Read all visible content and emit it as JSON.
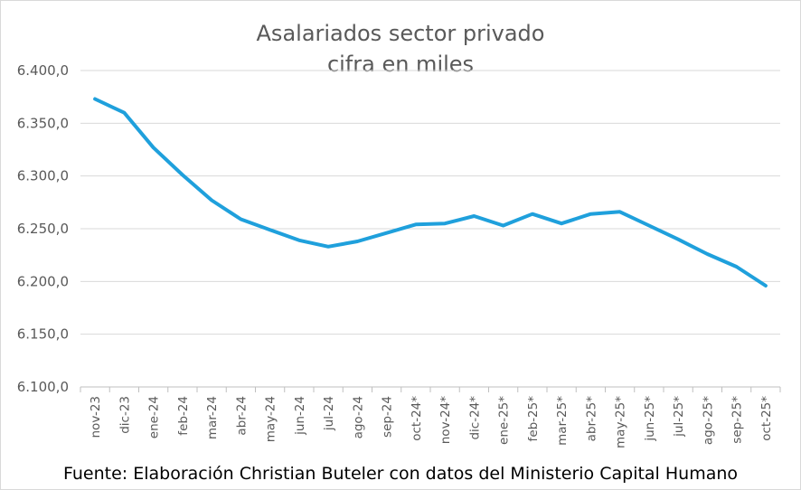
{
  "chart_data": {
    "type": "line",
    "title": "Asalariados sector privado",
    "subtitle": "cifra en miles",
    "footnote": "Fuente: Elaboración Christian Buteler con datos del Ministerio Capital Humano",
    "xlabel": "",
    "ylabel": "",
    "ylim": [
      6100,
      6400
    ],
    "yticks": [
      6100,
      6150,
      6200,
      6250,
      6300,
      6350,
      6400
    ],
    "ytick_labels": [
      "6.100,0",
      "6.150,0",
      "6.200,0",
      "6.250,0",
      "6.300,0",
      "6.350,0",
      "6.400,0"
    ],
    "grid": "horizontal",
    "line_color": "#1fa0dc",
    "categories": [
      "nov-23",
      "dic-23",
      "ene-24",
      "feb-24",
      "mar-24",
      "abr-24",
      "may-24",
      "jun-24",
      "jul-24",
      "ago-24",
      "sep-24",
      "oct-24*",
      "nov-24*",
      "dic-24*",
      "ene-25*",
      "feb-25*",
      "mar-25*",
      "abr-25*",
      "may-25*",
      "jun-25*",
      "jul-25*",
      "ago-25*",
      "sep-25*",
      "oct-25*"
    ],
    "values": [
      6373,
      6360,
      6327,
      6301,
      6277,
      6259,
      6249,
      6239,
      6233,
      6238,
      6246,
      6254,
      6255,
      6262,
      6253,
      6264,
      6255,
      6264,
      6266,
      6253,
      6240,
      6226,
      6214,
      6196
    ]
  }
}
